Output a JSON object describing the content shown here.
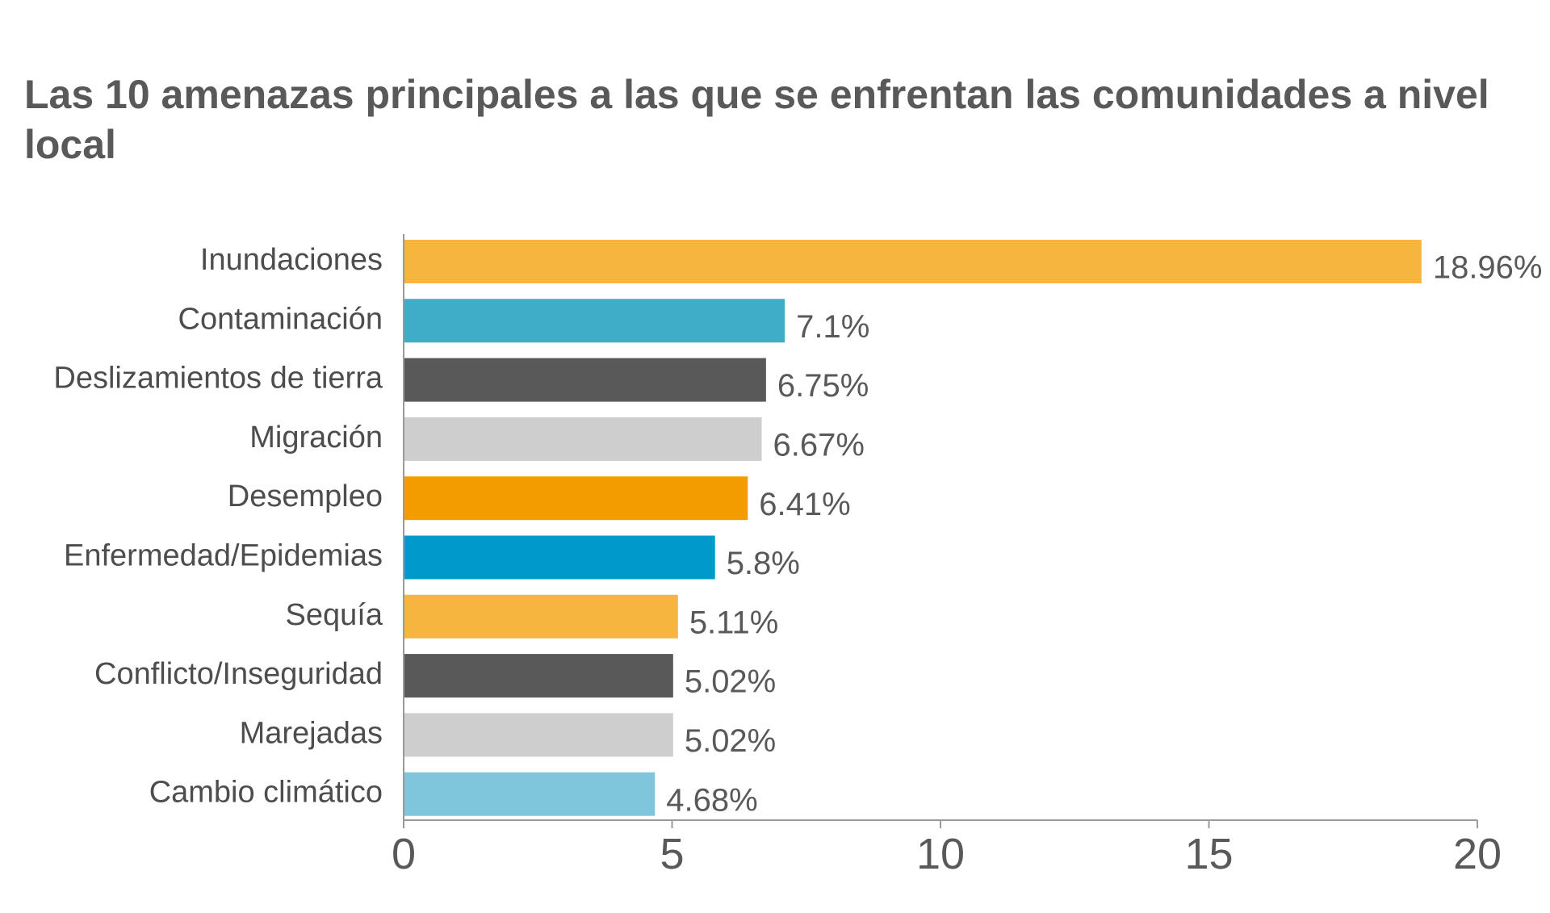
{
  "chart_data": {
    "type": "bar",
    "orientation": "horizontal",
    "title": "Las 10 amenazas principales a las que se enfrentan las comunidades a nivel local",
    "categories": [
      "Inundaciones",
      "Contaminación",
      "Deslizamientos de tierra",
      "Migración",
      "Desempleo",
      "Enfermedad/Epidemias",
      "Sequía",
      "Conflicto/Inseguridad",
      "Marejadas",
      "Cambio climático"
    ],
    "values": [
      18.96,
      7.1,
      6.75,
      6.67,
      6.41,
      5.8,
      5.11,
      5.02,
      5.02,
      4.68
    ],
    "value_labels": [
      "18.96%",
      "7.1%",
      "6.75%",
      "6.67%",
      "6.41%",
      "5.8%",
      "5.11%",
      "5.02%",
      "5.02%",
      "4.68%"
    ],
    "colors": [
      "#F6B53F",
      "#3FADC8",
      "#595959",
      "#CECECE",
      "#F39C00",
      "#0099CC",
      "#F6B53F",
      "#595959",
      "#CECECE",
      "#7FC6DA"
    ],
    "xlim": [
      0,
      20
    ],
    "x_ticks": [
      0,
      5,
      10,
      15,
      20
    ],
    "x_tick_labels": [
      "0",
      "5",
      "10",
      "15",
      "20"
    ],
    "xlabel": "",
    "ylabel": "",
    "grid": false,
    "legend": "none"
  }
}
